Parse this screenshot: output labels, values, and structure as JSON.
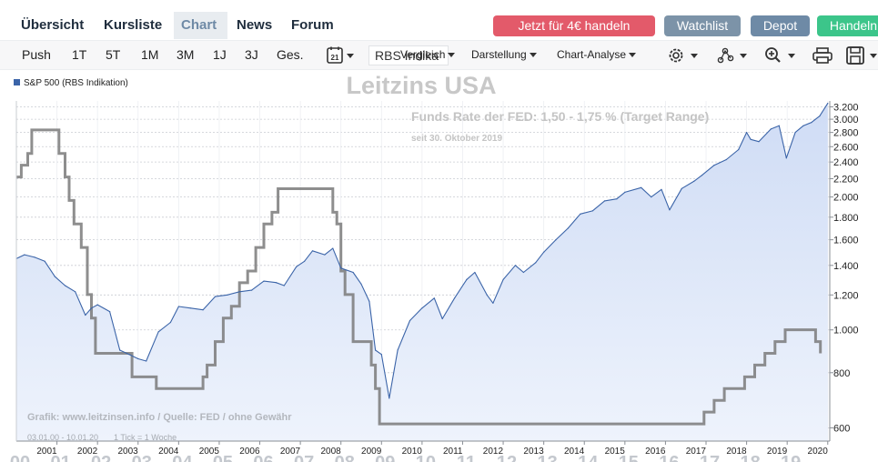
{
  "nav": {
    "tabs": [
      "Übersicht",
      "Kursliste",
      "Chart",
      "News",
      "Forum"
    ],
    "active_tab": "Chart",
    "cta_button": "Jetzt für 4€ handeln",
    "watchlist_button": "Watchlist",
    "depot_button": "Depot",
    "handeln_button": "Handeln"
  },
  "toolbar": {
    "periods": [
      "Push",
      "1T",
      "5T",
      "1M",
      "3M",
      "1J",
      "3J",
      "Ges."
    ],
    "calendar_day": "21",
    "exchange_value": "RBS Indika",
    "overlay_label": "Vergleich",
    "representation": "Darstellung",
    "analysis": "Chart-Analyse",
    "icons": [
      "calendar-icon",
      "gear-icon",
      "indicators-icon",
      "zoom-icon",
      "print-icon",
      "save-icon"
    ]
  },
  "chart": {
    "legend_label": "S&P 500 (RBS Indikation)",
    "watermark_title": "Leitzins USA",
    "annotation_main": "Funds Rate der FED: 1,50 - 1,75 % (Target Range)",
    "annotation_sub": "seit 30. Oktober 2019",
    "source_text": "Grafik: www.leitzinsen.info / Quelle: FED / ohne Gewähr",
    "range_text": "03.01.00 - 10.01.20",
    "tick_info": "1 Tick = 1 Woche",
    "bottom_year_strip": [
      "00",
      "01",
      "02",
      "03",
      "04",
      "05",
      "06",
      "07",
      "08",
      "09",
      "10",
      "11",
      "12",
      "13",
      "14",
      "15",
      "16",
      "17",
      "18",
      "19"
    ],
    "colors": {
      "price_line": "#3b64a8",
      "area_top": "#cfdcf5",
      "area_bottom": "#eef3fc",
      "rate_line": "#7a7a7a",
      "cta": "#e35a6a",
      "watchlist": "#7c93a8",
      "depot": "#6e8aa6",
      "handeln": "#3cc58a"
    }
  },
  "chart_data": {
    "type": "line",
    "title": "Leitzins USA",
    "y_scale": "log",
    "ylim": [
      560,
      3300
    ],
    "yticks": [
      600,
      800,
      1000,
      1200,
      1400,
      1600,
      1800,
      2000,
      2200,
      2400,
      2600,
      2800,
      3000,
      3200
    ],
    "ytick_labels": [
      "600",
      "800",
      "1.000",
      "1.200",
      "1.400",
      "1.600",
      "1.800",
      "2.000",
      "2.200",
      "2.400",
      "2.600",
      "2.800",
      "3.000",
      "3.200"
    ],
    "xticks": [
      2001,
      2002,
      2003,
      2004,
      2005,
      2006,
      2007,
      2008,
      2009,
      2010,
      2011,
      2012,
      2013,
      2014,
      2015,
      2016,
      2017,
      2018,
      2019,
      2020
    ],
    "xtick_labels": [
      "2001",
      "2002",
      "2003",
      "2004",
      "2005",
      "2006",
      "2007",
      "2008",
      "2009",
      "2010",
      "2011",
      "2012",
      "2013",
      "2014",
      "2015",
      "2016",
      "2017",
      "2018",
      "2019",
      "2020"
    ],
    "xlim": [
      2000.0,
      2020.05
    ],
    "grid": true,
    "legend": "top-left",
    "series": [
      {
        "name": "S&P 500 (RBS Indikation)",
        "x": [
          2000.0,
          2000.2,
          2000.45,
          2000.7,
          2000.95,
          2001.2,
          2001.45,
          2001.7,
          2001.85,
          2002.0,
          2002.3,
          2002.55,
          2002.78,
          2003.0,
          2003.2,
          2003.5,
          2003.8,
          2004.0,
          2004.3,
          2004.6,
          2004.9,
          2005.2,
          2005.5,
          2005.8,
          2006.1,
          2006.4,
          2006.6,
          2006.9,
          2007.1,
          2007.3,
          2007.6,
          2007.8,
          2008.0,
          2008.3,
          2008.5,
          2008.7,
          2008.85,
          2009.0,
          2009.19,
          2009.4,
          2009.7,
          2010.0,
          2010.3,
          2010.5,
          2010.8,
          2011.1,
          2011.3,
          2011.6,
          2011.75,
          2012.0,
          2012.3,
          2012.5,
          2012.8,
          2013.0,
          2013.3,
          2013.6,
          2013.9,
          2014.2,
          2014.5,
          2014.8,
          2015.0,
          2015.4,
          2015.65,
          2015.9,
          2016.1,
          2016.4,
          2016.7,
          2016.9,
          2017.2,
          2017.5,
          2017.8,
          2018.0,
          2018.1,
          2018.3,
          2018.6,
          2018.8,
          2018.98,
          2019.2,
          2019.4,
          2019.6,
          2019.8,
          2020.0
        ],
        "y": [
          1450,
          1480,
          1460,
          1430,
          1320,
          1260,
          1220,
          1080,
          1120,
          1140,
          1100,
          900,
          880,
          860,
          850,
          990,
          1040,
          1130,
          1120,
          1110,
          1190,
          1200,
          1220,
          1230,
          1290,
          1280,
          1260,
          1390,
          1430,
          1510,
          1480,
          1530,
          1380,
          1350,
          1270,
          1160,
          900,
          880,
          700,
          900,
          1050,
          1120,
          1180,
          1060,
          1180,
          1300,
          1350,
          1200,
          1150,
          1300,
          1400,
          1350,
          1420,
          1500,
          1600,
          1700,
          1830,
          1860,
          1960,
          1980,
          2050,
          2100,
          2000,
          2080,
          1870,
          2090,
          2170,
          2240,
          2360,
          2430,
          2560,
          2800,
          2700,
          2670,
          2850,
          2900,
          2450,
          2800,
          2900,
          2950,
          3050,
          3260
        ]
      },
      {
        "name": "Federal Funds Target Rate",
        "x": [
          2000.0,
          2000.12,
          2000.28,
          2000.38,
          2001.0,
          2001.05,
          2001.2,
          2001.3,
          2001.42,
          2001.6,
          2001.75,
          2001.85,
          2001.95,
          2002.85,
          2003.45,
          2004.45,
          2004.6,
          2004.7,
          2004.9,
          2005.1,
          2005.3,
          2005.5,
          2005.7,
          2005.9,
          2006.1,
          2006.3,
          2006.45,
          2007.7,
          2007.8,
          2007.9,
          2008.0,
          2008.1,
          2008.3,
          2008.75,
          2008.85,
          2008.95,
          2015.95,
          2016.95,
          2017.2,
          2017.45,
          2017.95,
          2018.2,
          2018.45,
          2018.7,
          2018.95,
          2019.55,
          2019.7,
          2019.82
        ],
        "y": [
          5.5,
          5.75,
          6.0,
          6.5,
          6.5,
          6.0,
          5.5,
          5.0,
          4.5,
          4.0,
          3.0,
          2.5,
          1.75,
          1.25,
          1.0,
          1.0,
          1.25,
          1.5,
          2.0,
          2.5,
          2.75,
          3.25,
          3.5,
          4.0,
          4.5,
          4.75,
          5.25,
          5.25,
          4.75,
          4.5,
          3.5,
          3.0,
          2.0,
          1.5,
          1.0,
          0.25,
          0.25,
          0.5,
          0.75,
          1.0,
          1.25,
          1.5,
          1.75,
          2.0,
          2.25,
          2.25,
          2.0,
          1.75
        ]
      }
    ]
  }
}
